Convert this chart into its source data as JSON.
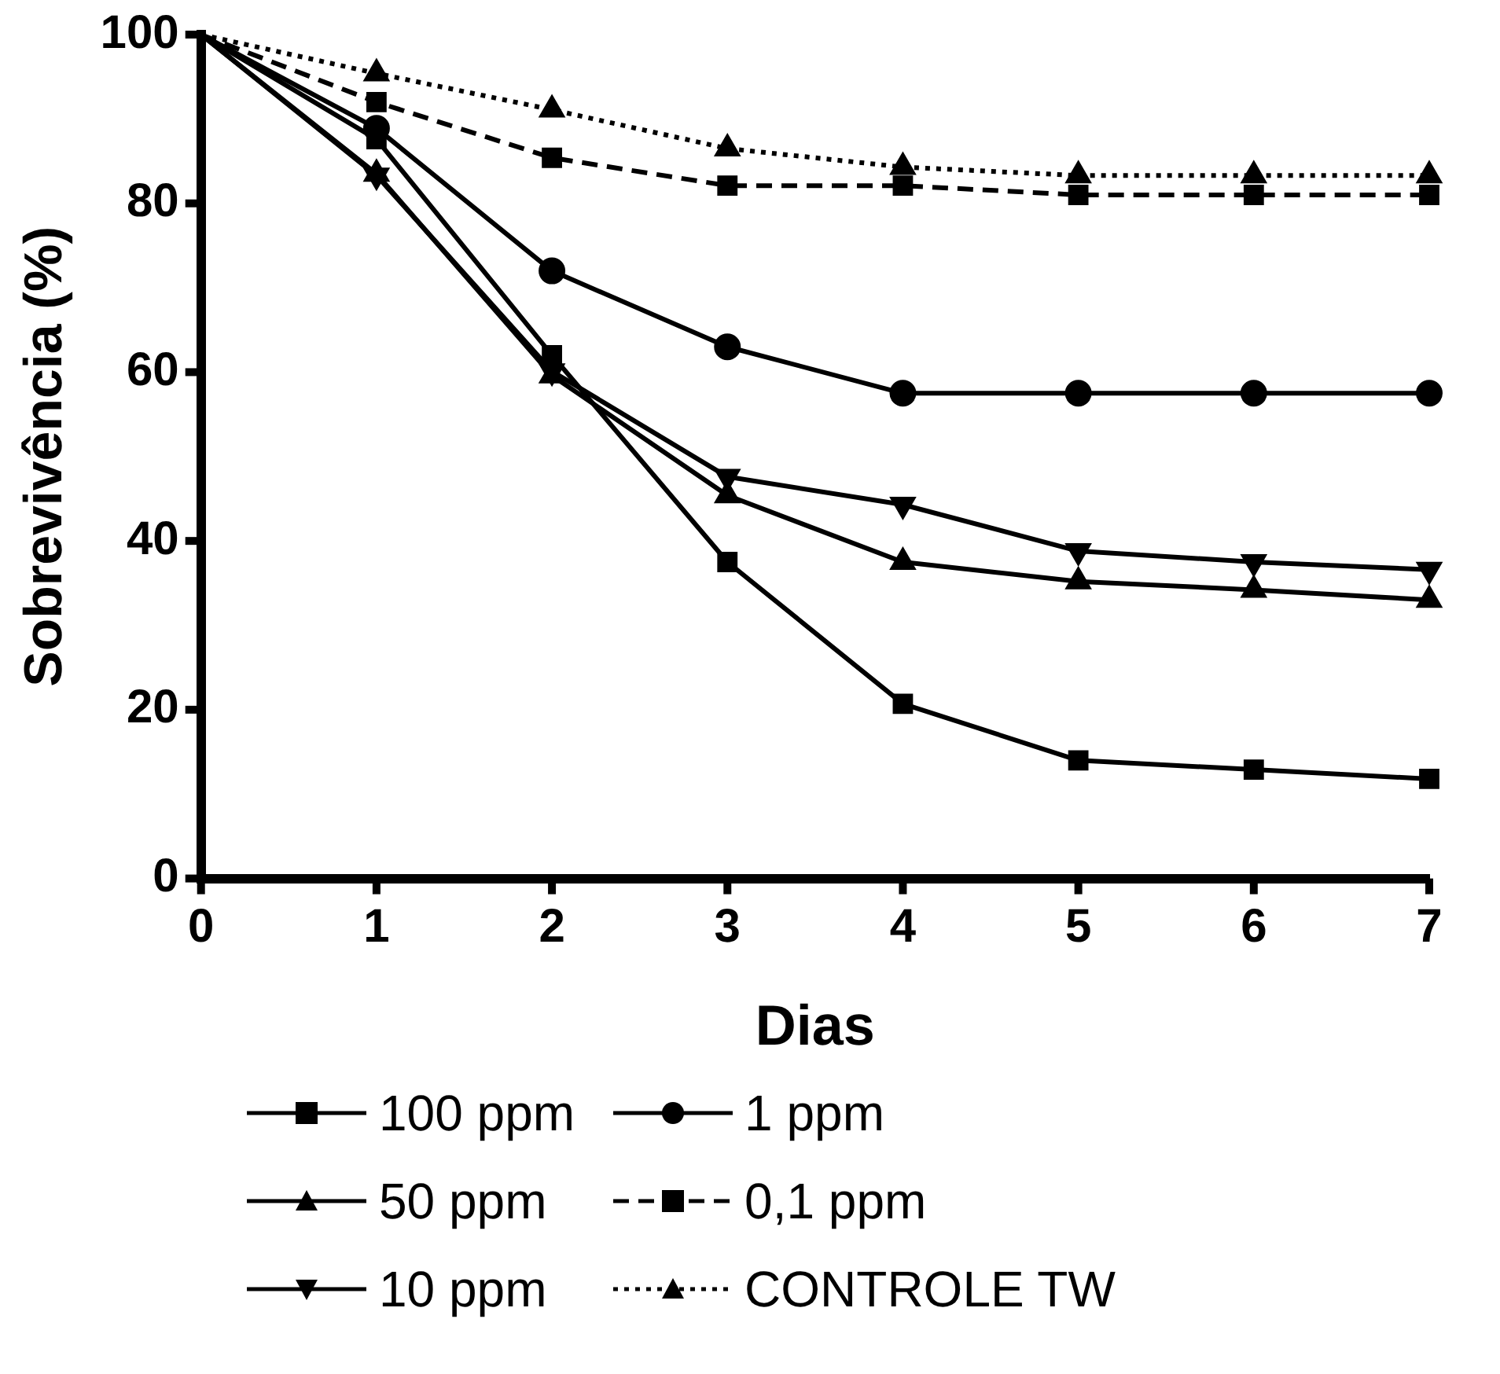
{
  "chart_data": {
    "type": "line",
    "xlabel": "Dias",
    "ylabel": "Sobrevivência (%)",
    "x": [
      0,
      1,
      2,
      3,
      4,
      5,
      6,
      7
    ],
    "xlim": [
      0,
      7
    ],
    "xticks": [
      0,
      1,
      2,
      3,
      4,
      5,
      6,
      7
    ],
    "ylim": [
      0,
      100
    ],
    "yticks": [
      0,
      20,
      40,
      60,
      80,
      100
    ],
    "grid": false,
    "legend": "bottom",
    "series": [
      {
        "name": "100 ppm",
        "color": "#000000",
        "marker": "square",
        "line_style": "solid",
        "values": [
          100,
          87.6,
          62,
          37.5,
          20.7,
          14,
          12.9,
          11.8
        ]
      },
      {
        "name": "50 ppm",
        "color": "#000000",
        "marker": "triangle",
        "line_style": "solid",
        "values": [
          100,
          83.5,
          59.6,
          45.4,
          37.5,
          35.2,
          34.2,
          33
        ]
      },
      {
        "name": "10 ppm",
        "color": "#000000",
        "marker": "triangle-down",
        "line_style": "solid",
        "values": [
          100,
          83.3,
          60.1,
          47.6,
          44.3,
          38.8,
          37.5,
          36.6
        ]
      },
      {
        "name": "1 ppm",
        "color": "#000000",
        "marker": "circle",
        "line_style": "solid",
        "values": [
          100,
          88.9,
          72,
          63,
          57.5,
          57.5,
          57.5,
          57.5
        ]
      },
      {
        "name": "0,1 ppm",
        "color": "#000000",
        "marker": "square",
        "line_style": "dashed",
        "values": [
          100,
          92,
          85.4,
          82.1,
          82.1,
          81,
          81,
          81
        ]
      },
      {
        "name": "CONTROLE TW",
        "color": "#000000",
        "marker": "triangle",
        "line_style": "dotted",
        "values": [
          100,
          95.4,
          91.1,
          86.5,
          84.3,
          83.3,
          83.3,
          83.3
        ]
      }
    ]
  }
}
